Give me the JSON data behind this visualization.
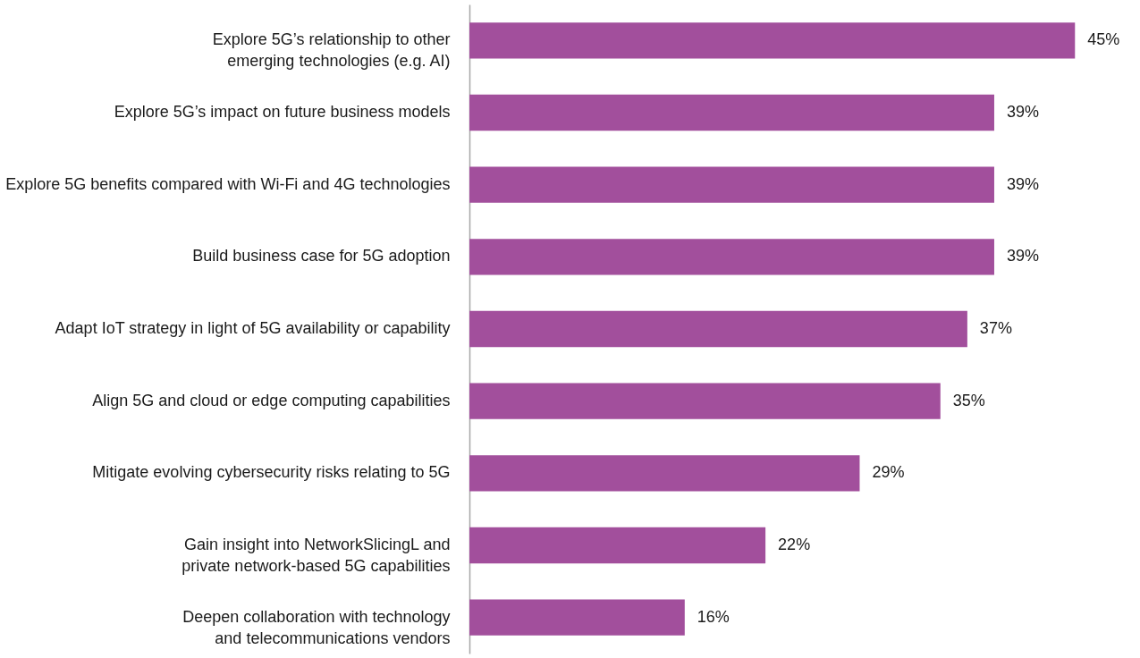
{
  "chart_data": {
    "type": "bar",
    "orientation": "horizontal",
    "categories": [
      "Explore 5G’s relationship to other emerging technologies (e.g. AI)",
      "Explore 5G’s impact on future business models",
      "Explore 5G benefits compared with Wi-Fi and 4G technologies",
      "Build business case for 5G adoption",
      "Adapt IoT strategy in light of 5G availability or capability",
      "Align 5G and cloud or edge computing capabilities",
      "Mitigate evolving cybersecurity risks relating to 5G",
      "Gain insight into NetworkSlicingL and private network-based 5G capabilities",
      "Deepen collaboration with technology and telecommunications vendors"
    ],
    "values": [
      45,
      39,
      39,
      39,
      37,
      35,
      29,
      22,
      16
    ],
    "value_labels": [
      "45%",
      "39%",
      "39%",
      "39%",
      "37%",
      "35%",
      "29%",
      "22%",
      "16%"
    ],
    "color": "#a24f9c",
    "grid": false
  }
}
